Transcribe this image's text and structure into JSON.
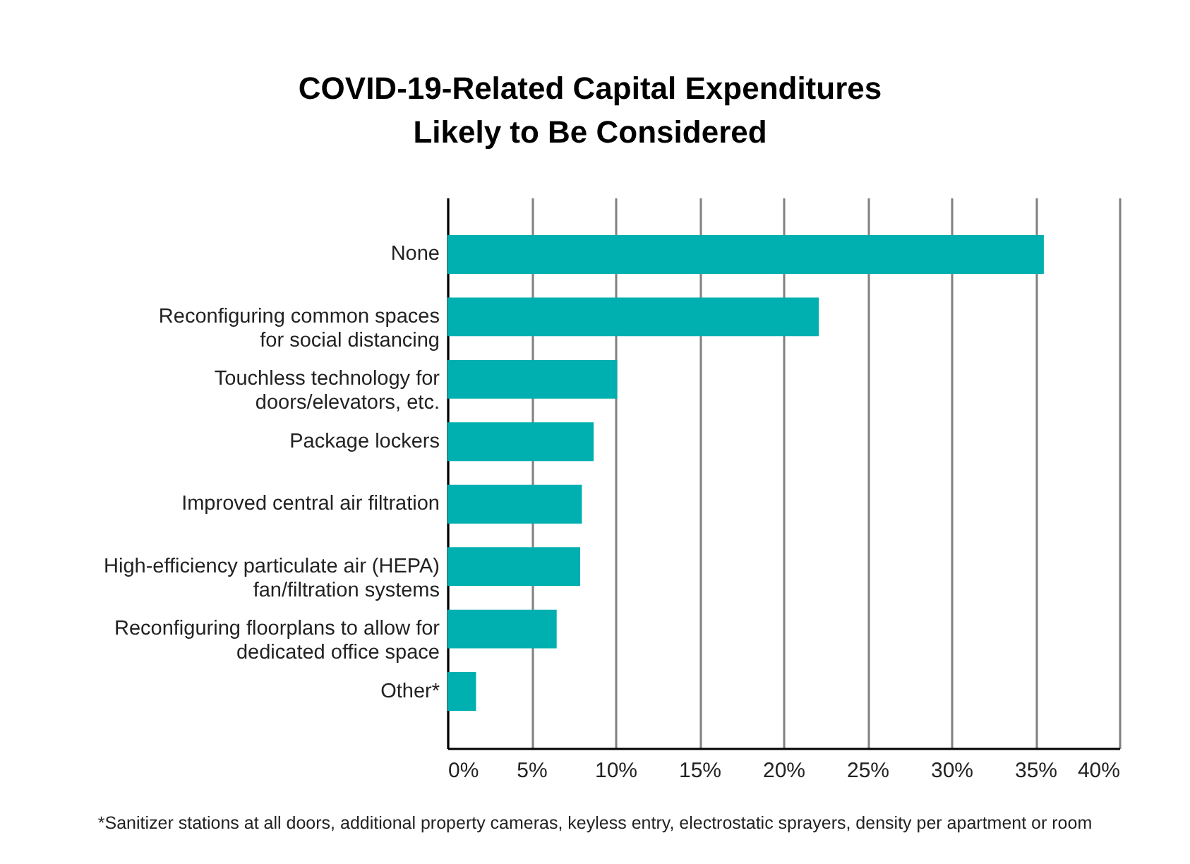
{
  "chart_data": {
    "type": "bar",
    "orientation": "horizontal",
    "title": "COVID-19-Related Capital Expenditures\nLikely to Be Considered",
    "categories": [
      "None",
      "Reconfiguring common spaces\nfor social distancing",
      "Touchless technology for\ndoors/elevators, etc.",
      "Package lockers",
      "Improved central air filtration",
      "High-efficiency particulate air (HEPA)\nfan/filtration systems",
      "Reconfiguring floorplans to allow for\ndedicated office space",
      "Other*"
    ],
    "values": [
      35.5,
      22.1,
      10.1,
      8.7,
      8.0,
      7.9,
      6.5,
      1.7
    ],
    "color": "#00afaf",
    "xlim": [
      0,
      40
    ],
    "xticks": [
      {
        "value": 0,
        "label": "0%"
      },
      {
        "value": 5,
        "label": "5%"
      },
      {
        "value": 10,
        "label": "10%"
      },
      {
        "value": 15,
        "label": "15%"
      },
      {
        "value": 20,
        "label": "20%"
      },
      {
        "value": 25,
        "label": "25%"
      },
      {
        "value": 30,
        "label": "30%"
      },
      {
        "value": 35,
        "label": "35%"
      },
      {
        "value": 40,
        "label": "40%"
      }
    ],
    "grid": "x",
    "annotations": [
      "*Sanitizer stations at all doors, additional property cameras, keyless entry, electrostatic sprayers, density per apartment or room"
    ]
  }
}
